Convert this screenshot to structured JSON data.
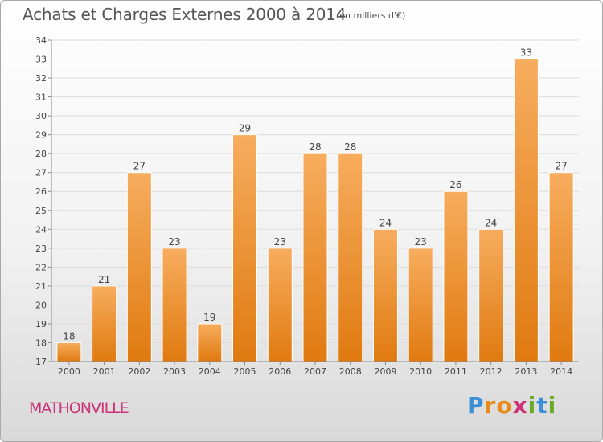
{
  "header": {
    "title": "Achats et Charges Externes 2000 à 2014",
    "unit": "(en milliers d'€)"
  },
  "footer": {
    "city": "MATHONVILLE"
  },
  "logo": {
    "text": "Proxiti",
    "letters": [
      {
        "char": "P",
        "color": "#3a8fd6"
      },
      {
        "char": "r",
        "color": "#e88a1a"
      },
      {
        "char": "o",
        "color": "#e88a1a"
      },
      {
        "char": "x",
        "color": "#cc3377"
      },
      {
        "char": "i",
        "color": "#6aaa2a"
      },
      {
        "char": "t",
        "color": "#3a8fd6"
      },
      {
        "char": "i",
        "color": "#6aaa2a"
      }
    ]
  },
  "chart_data": {
    "type": "bar",
    "title": "Achats et Charges Externes 2000 à 2014",
    "categories": [
      "2000",
      "2001",
      "2002",
      "2003",
      "2004",
      "2005",
      "2006",
      "2007",
      "2008",
      "2009",
      "2010",
      "2011",
      "2012",
      "2013",
      "2014"
    ],
    "values": [
      18,
      21,
      27,
      23,
      19,
      29,
      23,
      28,
      28,
      24,
      23,
      26,
      24,
      33,
      27
    ],
    "ylim": [
      17,
      34
    ],
    "yticks": [
      17,
      18,
      19,
      20,
      21,
      22,
      23,
      24,
      25,
      26,
      27,
      28,
      29,
      30,
      31,
      32,
      33,
      34
    ],
    "grid": true,
    "bar_color": "#f08a24",
    "bar_color_light": "#f7ad5e"
  }
}
